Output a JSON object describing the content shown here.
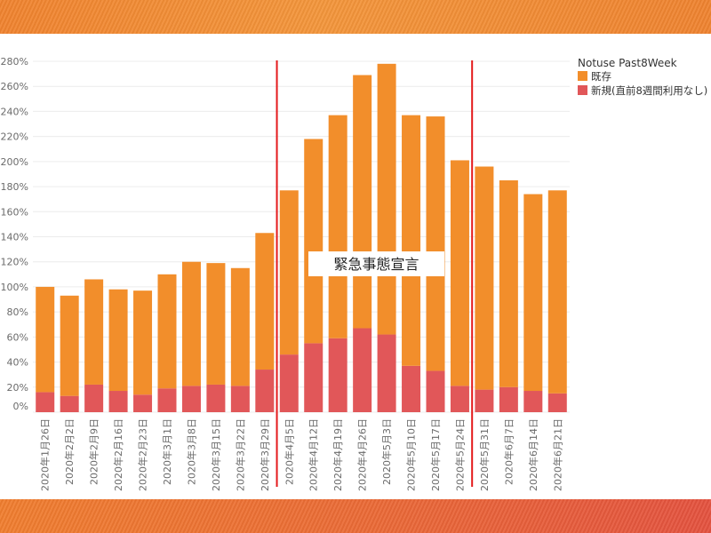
{
  "chart_data": {
    "type": "bar",
    "stacked": true,
    "categories": [
      "2020年1月26日",
      "2020年2月2日",
      "2020年2月9日",
      "2020年2月16日",
      "2020年2月23日",
      "2020年3月1日",
      "2020年3月8日",
      "2020年3月15日",
      "2020年3月22日",
      "2020年3月29日",
      "2020年4月5日",
      "2020年4月12日",
      "2020年4月19日",
      "2020年4月26日",
      "2020年5月3日",
      "2020年5月10日",
      "2020年5月17日",
      "2020年5月24日",
      "2020年5月31日",
      "2020年6月7日",
      "2020年6月14日",
      "2020年6月21日"
    ],
    "series": [
      {
        "name": "既存",
        "color": "#F28E2B",
        "values": [
          84,
          80,
          84,
          81,
          83,
          91,
          99,
          97,
          94,
          109,
          131,
          163,
          178,
          202,
          216,
          200,
          203,
          180,
          178,
          165,
          157,
          162
        ]
      },
      {
        "name": "新規(直前8週間利用なし)",
        "color": "#E15759",
        "values": [
          16,
          13,
          22,
          17,
          14,
          19,
          21,
          22,
          21,
          34,
          46,
          55,
          59,
          67,
          62,
          37,
          33,
          21,
          18,
          20,
          17,
          15
        ]
      }
    ],
    "ylim": [
      0,
      280
    ],
    "y_tick_values": [
      0,
      20,
      40,
      60,
      80,
      100,
      120,
      140,
      160,
      180,
      200,
      220,
      240,
      260,
      280
    ],
    "y_ticks": [
      "0%",
      "20%",
      "40%",
      "60%",
      "80%",
      "100%",
      "120%",
      "140%",
      "160%",
      "180%",
      "200%",
      "220%",
      "240%",
      "260%",
      "280%"
    ],
    "grid": true,
    "legend_title": "Notuse Past8Week",
    "legend_position": "top-right",
    "reference_lines": [
      {
        "x_between": [
          9,
          10
        ],
        "color": "#E41A1C"
      },
      {
        "x_between": [
          17,
          18
        ],
        "color": "#E41A1C"
      }
    ],
    "annotations": [
      {
        "text": "緊急事態宣言"
      }
    ]
  }
}
